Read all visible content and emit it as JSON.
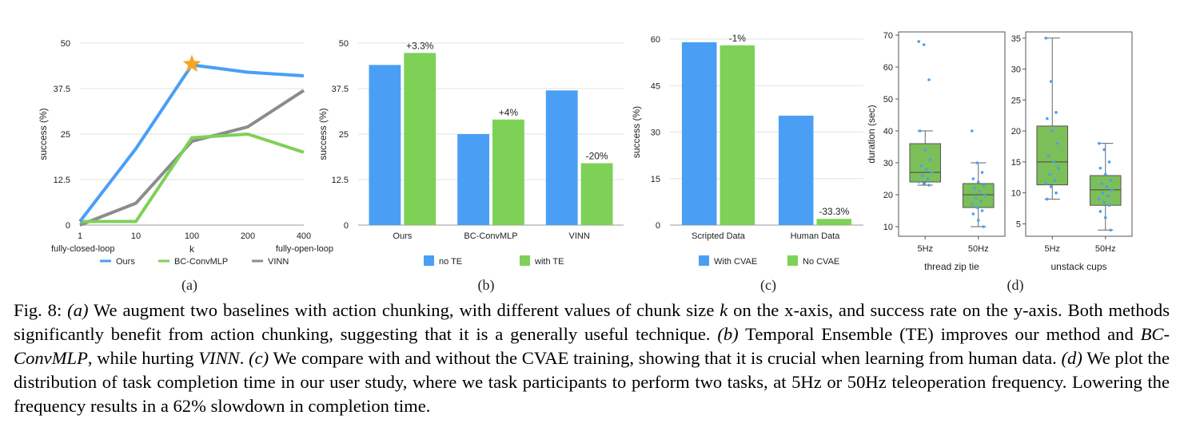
{
  "colors": {
    "blue": "#4A9FF5",
    "green": "#7ED157",
    "gray": "#8C8C8C",
    "star": "#F5A623",
    "box_fill": "#7CBF58",
    "dots": "#4A9FF5"
  },
  "panel_letters": [
    "(a)",
    "(b)",
    "(c)",
    "(d)"
  ],
  "caption": {
    "fig": "Fig. 8:",
    "a_tag": "(a)",
    "a_text": " We augment two baselines with action chunking, with different values of chunk size ",
    "k": "k",
    "a_text2": " on the x-axis, and success rate on the y-axis. Both methods significantly benefit from action chunking, suggesting that it is a generally useful technique. ",
    "b_tag": "(b)",
    "b_text": " Temporal Ensemble (TE) improves our method and ",
    "bc": "BC-ConvMLP",
    "b_text2": ", while hurting ",
    "vinn": "VINN",
    "b_text3": ". ",
    "c_tag": "(c)",
    "c_text": " We compare with and without the CVAE training, showing that it is crucial when learning from human data. ",
    "d_tag": "(d)",
    "d_text": " We plot the distribution of task completion time in our user study, where we task participants to perform two tasks, at 5Hz or 50Hz teleoperation frequency. Lowering the frequency results in a 62% slowdown in completion time."
  },
  "chart_data": [
    {
      "type": "line",
      "x": [
        "1",
        "10",
        "100",
        "200",
        "400"
      ],
      "xlabel": "k",
      "ylabel": "success (%)",
      "ylim": [
        0,
        50
      ],
      "yticks": [
        "0",
        "12.5",
        "25",
        "37.5",
        "50"
      ],
      "x_end_labels": [
        "fully-closed-loop",
        "fully-open-loop"
      ],
      "series": [
        {
          "name": "Ours",
          "values": [
            1,
            21,
            44,
            42,
            41
          ]
        },
        {
          "name": "BC-ConvMLP",
          "values": [
            1,
            1,
            24,
            25,
            20
          ]
        },
        {
          "name": "VINN",
          "values": [
            0,
            6,
            23,
            27,
            37
          ]
        }
      ],
      "marker": {
        "series": "Ours",
        "x": "100",
        "shape": "star"
      },
      "legend": "bottom"
    },
    {
      "type": "bar",
      "categories": [
        "Ours",
        "BC-ConvMLP",
        "VINN"
      ],
      "ylabel": "success (%)",
      "ylim": [
        0,
        50
      ],
      "yticks": [
        "0",
        "12.5",
        "25",
        "37.5",
        "50"
      ],
      "series": [
        {
          "name": "no TE",
          "values": [
            44,
            25,
            37
          ]
        },
        {
          "name": "with TE",
          "values": [
            47.3,
            29,
            17
          ]
        }
      ],
      "data_labels": [
        "+3.3%",
        "+4%",
        "-20%"
      ],
      "legend": "bottom"
    },
    {
      "type": "bar",
      "categories": [
        "Scripted Data",
        "Human Data"
      ],
      "ylabel": "success (%)",
      "ylim": [
        0,
        60
      ],
      "yticks": [
        "0",
        "15",
        "30",
        "45",
        "60"
      ],
      "series": [
        {
          "name": "With CVAE",
          "values": [
            59,
            35.3
          ]
        },
        {
          "name": "No CVAE",
          "values": [
            58,
            2
          ]
        }
      ],
      "data_labels": [
        "-1%",
        "-33.3%"
      ],
      "legend": "bottom"
    },
    {
      "type": "box",
      "xlabel": "thread zip tie",
      "ylabel": "duration (sec)",
      "ylim": [
        7,
        71
      ],
      "yticks": [
        "10",
        "20",
        "30",
        "40",
        "50",
        "60",
        "70"
      ],
      "categories": [
        "5Hz",
        "50Hz"
      ],
      "boxes": [
        {
          "q1": 24,
          "median": 27,
          "q3": 36,
          "whisker_low": 23,
          "whisker_high": 40
        },
        {
          "q1": 16,
          "median": 20,
          "q3": 23.5,
          "whisker_low": 10,
          "whisker_high": 30
        }
      ],
      "points": [
        [
          68,
          67,
          56,
          40,
          34,
          31,
          29,
          28,
          27,
          26,
          25,
          24,
          23.5,
          23
        ],
        [
          40,
          30,
          27,
          25,
          24,
          23,
          22,
          21,
          20,
          19,
          18,
          17,
          16,
          15,
          14,
          12,
          10
        ]
      ]
    },
    {
      "type": "box",
      "xlabel": "unstack cups",
      "ylabel": "",
      "ylim": [
        3,
        36
      ],
      "yticks": [
        "5",
        "10",
        "15",
        "20",
        "25",
        "30",
        "35"
      ],
      "categories": [
        "5Hz",
        "50Hz"
      ],
      "boxes": [
        {
          "q1": 11.3,
          "median": 15,
          "q3": 20.8,
          "whisker_low": 9,
          "whisker_high": 35
        },
        {
          "q1": 8,
          "median": 10.5,
          "q3": 12.8,
          "whisker_low": 4,
          "whisker_high": 18
        }
      ],
      "points": [
        [
          35,
          28,
          23,
          22,
          20,
          18,
          16,
          15,
          14,
          13,
          12,
          11.5,
          11,
          10,
          9
        ],
        [
          18,
          17,
          15,
          14,
          13,
          12,
          11.5,
          11,
          10.5,
          10,
          9.5,
          9,
          8.5,
          8,
          7,
          6,
          4
        ]
      ]
    }
  ]
}
